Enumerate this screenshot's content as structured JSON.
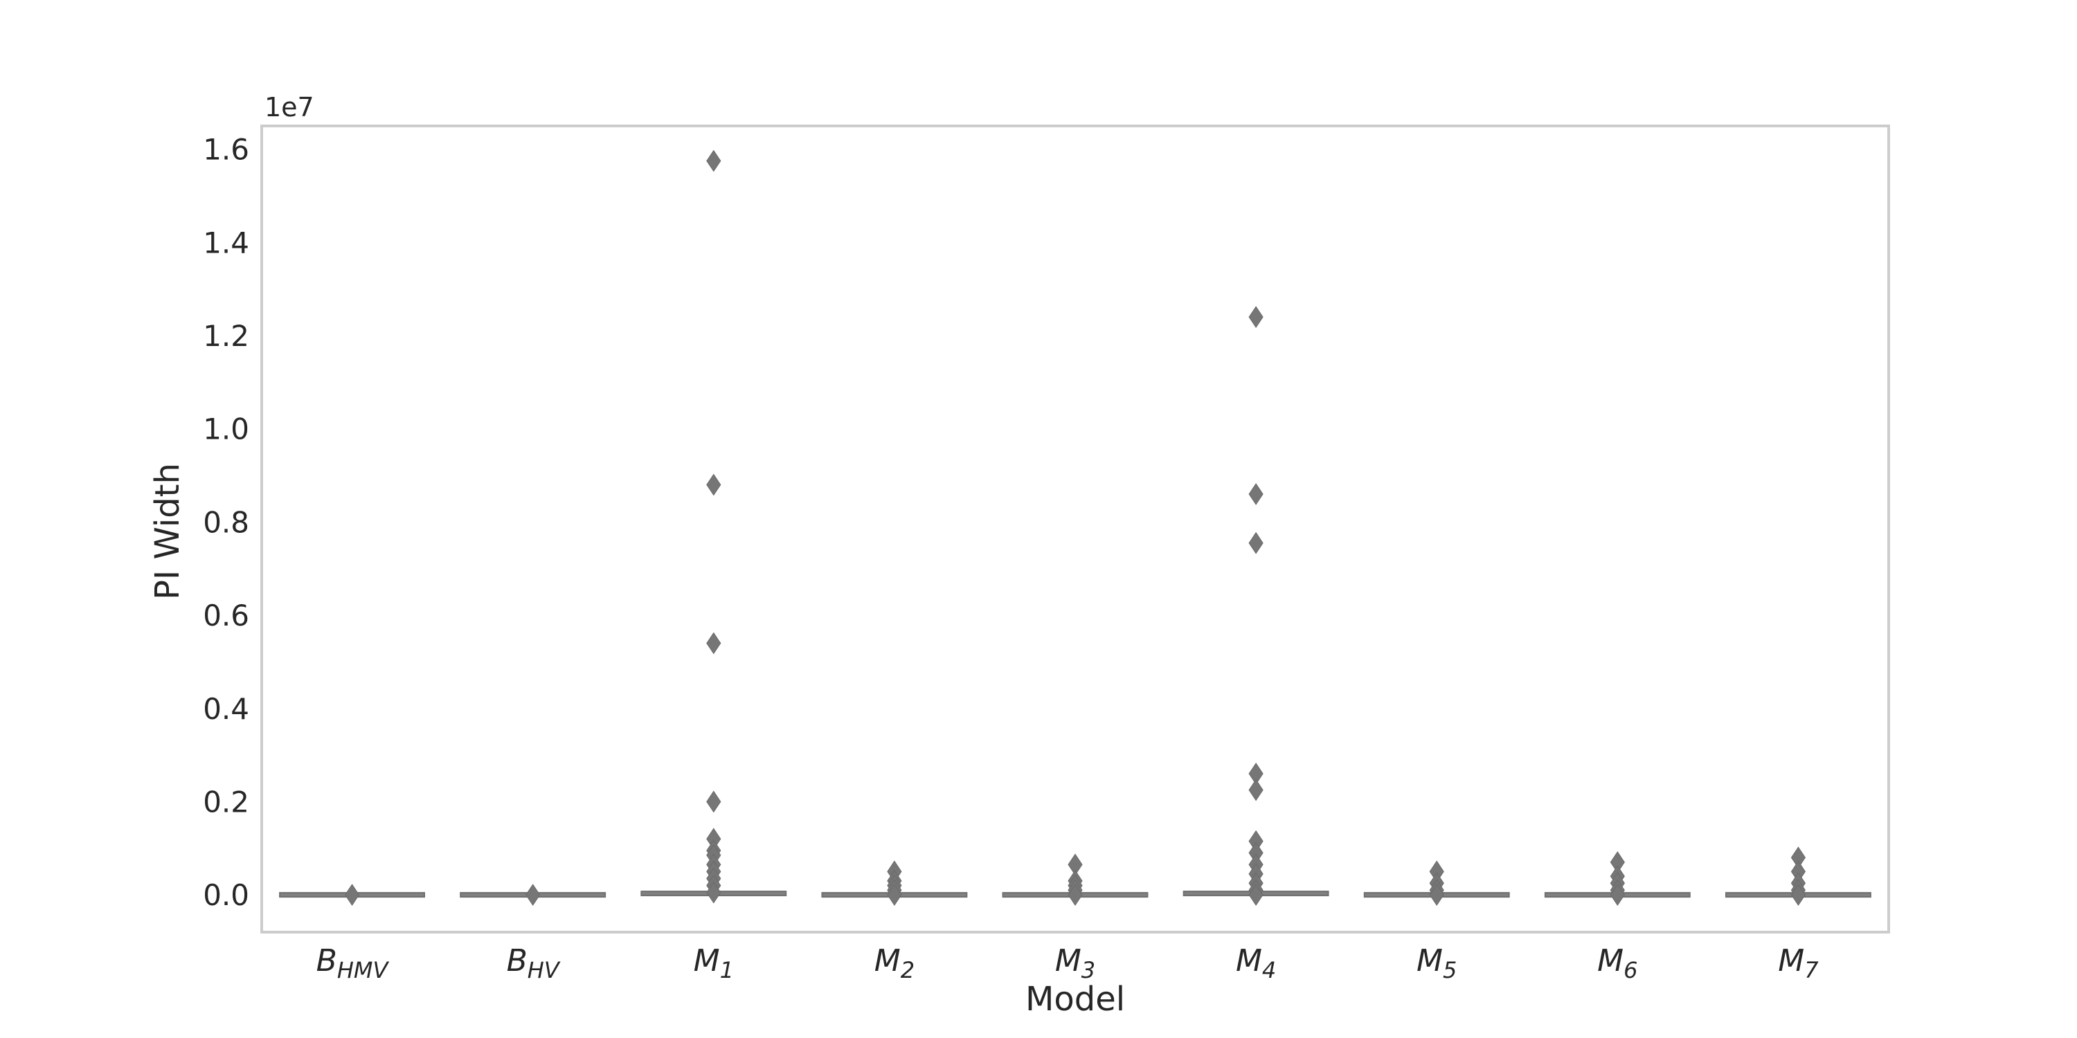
{
  "chart_data": {
    "type": "box",
    "title": "",
    "xlabel": "Model",
    "ylabel": "PI Width",
    "y_offset_label": "1e7",
    "y_scale": 10000000,
    "ylim": [
      -0.08,
      1.65
    ],
    "yticks": [
      0.0,
      0.2,
      0.4,
      0.6,
      0.8,
      1.0,
      1.2,
      1.4,
      1.6
    ],
    "ytick_labels": [
      "0.0",
      "0.2",
      "0.4",
      "0.6",
      "0.8",
      "1.0",
      "1.2",
      "1.4",
      "1.6"
    ],
    "grid": false,
    "box_color": "#808080",
    "categories": [
      {
        "base": "B",
        "sub": "HMV"
      },
      {
        "base": "B",
        "sub": "HV"
      },
      {
        "base": "M",
        "sub": "1"
      },
      {
        "base": "M",
        "sub": "2"
      },
      {
        "base": "M",
        "sub": "3"
      },
      {
        "base": "M",
        "sub": "4"
      },
      {
        "base": "M",
        "sub": "5"
      },
      {
        "base": "M",
        "sub": "6"
      },
      {
        "base": "M",
        "sub": "7"
      }
    ],
    "outliers": [
      [
        0.0
      ],
      [
        0.0
      ],
      [
        1.575,
        0.88,
        0.54,
        0.2,
        0.12,
        0.095,
        0.085,
        0.065,
        0.05,
        0.035,
        0.02,
        0.005
      ],
      [
        0.05,
        0.03,
        0.02,
        0.01,
        0.0
      ],
      [
        0.065,
        0.03,
        0.02,
        0.01,
        0.0
      ],
      [
        1.24,
        0.86,
        0.755,
        0.26,
        0.225,
        0.115,
        0.09,
        0.065,
        0.045,
        0.025,
        0.01,
        0.0
      ],
      [
        0.05,
        0.025,
        0.01,
        0.0
      ],
      [
        0.07,
        0.04,
        0.025,
        0.01,
        0.0
      ],
      [
        0.08,
        0.05,
        0.025,
        0.01,
        0.0
      ]
    ],
    "box_median": [
      0.0,
      0.0,
      0.003,
      0.0,
      0.0,
      0.003,
      0.0,
      0.0,
      0.0
    ]
  }
}
